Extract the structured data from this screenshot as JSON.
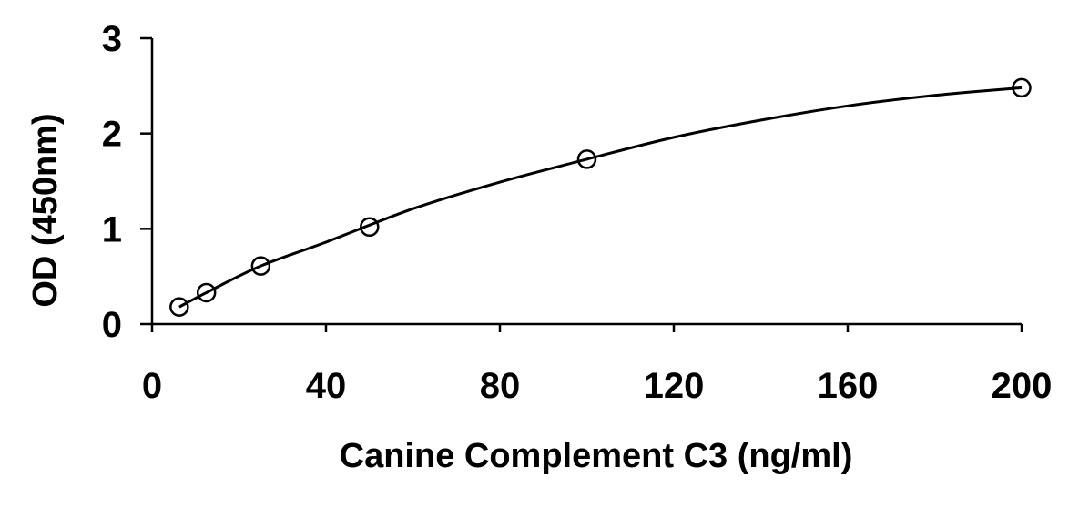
{
  "chart_data": {
    "type": "scatter",
    "title": "",
    "xlabel": "Canine Complement C3 (ng/ml)",
    "ylabel": "OD (450nm)",
    "xlim": [
      0,
      200
    ],
    "ylim": [
      0,
      3
    ],
    "xticks": [
      0,
      40,
      80,
      120,
      160,
      200
    ],
    "yticks": [
      0,
      1,
      2,
      3
    ],
    "grid": false,
    "legend": "none",
    "series": [
      {
        "x": [
          6.25,
          12.5,
          25,
          50,
          100,
          200
        ],
        "y": [
          0.18,
          0.33,
          0.61,
          1.02,
          1.73,
          2.48
        ],
        "marker": "open-circle",
        "fit_curve": true
      }
    ],
    "fit_curve": {
      "x": [
        6.25,
        12.5,
        25,
        40,
        60,
        80,
        100,
        120,
        140,
        160,
        180,
        200
      ],
      "y": [
        0.18,
        0.33,
        0.61,
        0.86,
        1.21,
        1.49,
        1.73,
        1.96,
        2.14,
        2.29,
        2.4,
        2.48
      ]
    }
  }
}
